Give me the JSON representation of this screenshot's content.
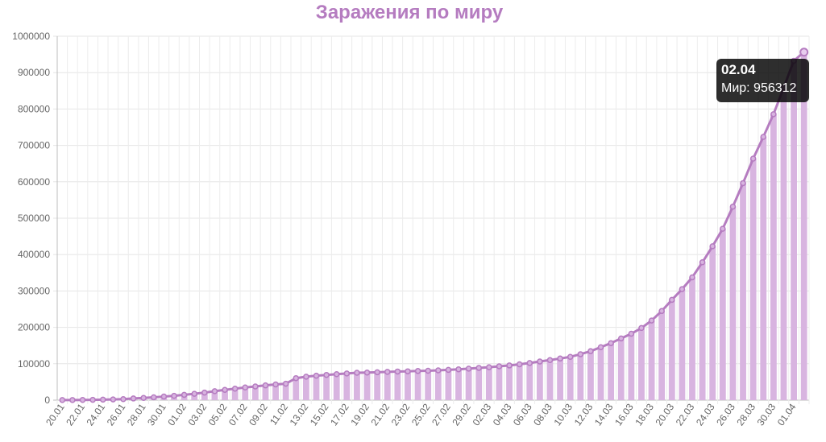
{
  "chart_data": {
    "type": "bar",
    "title": "Заражения по миру",
    "ylim": [
      0,
      1000000
    ],
    "y_ticks": [
      "0",
      "100000",
      "200000",
      "300000",
      "400000",
      "500000",
      "600000",
      "700000",
      "800000",
      "900000",
      "1000000"
    ],
    "grid": true,
    "categories": [
      "20.01",
      "21.01",
      "22.01",
      "23.01",
      "24.01",
      "25.01",
      "26.01",
      "27.01",
      "28.01",
      "29.01",
      "30.01",
      "31.01",
      "01.02",
      "02.02",
      "03.02",
      "04.02",
      "05.02",
      "06.02",
      "07.02",
      "08.02",
      "09.02",
      "10.02",
      "11.02",
      "12.02",
      "13.02",
      "14.02",
      "15.02",
      "16.02",
      "17.02",
      "18.02",
      "19.02",
      "20.02",
      "21.02",
      "22.02",
      "23.02",
      "24.02",
      "25.02",
      "26.02",
      "27.02",
      "28.02",
      "29.02",
      "01.03",
      "02.03",
      "03.03",
      "04.03",
      "05.03",
      "06.03",
      "07.03",
      "08.03",
      "09.03",
      "10.03",
      "11.03",
      "12.03",
      "13.03",
      "14.03",
      "15.03",
      "16.03",
      "17.03",
      "18.03",
      "19.03",
      "20.03",
      "21.03",
      "22.03",
      "23.03",
      "24.03",
      "25.03",
      "26.03",
      "27.03",
      "28.03",
      "29.03",
      "30.03",
      "31.03",
      "01.04",
      "02.04"
    ],
    "x_tick_labels": [
      "20.01",
      "22.01",
      "24.01",
      "26.01",
      "28.01",
      "30.01",
      "01.02",
      "03.02",
      "05.02",
      "07.02",
      "09.02",
      "11.02",
      "13.02",
      "15.02",
      "17.02",
      "19.02",
      "21.02",
      "23.02",
      "25.02",
      "27.02",
      "29.02",
      "02.03",
      "04.03",
      "06.03",
      "08.03",
      "10.03",
      "12.03",
      "14.03",
      "16.03",
      "18.03",
      "20.03",
      "22.03",
      "24.03",
      "26.03",
      "28.03",
      "30.03",
      "01.04"
    ],
    "series": [
      {
        "name": "Мир",
        "bar_color": "#d8b4e0",
        "line_color": "#b57cc0",
        "values": [
          282,
          314,
          581,
          846,
          1320,
          2014,
          2798,
          4593,
          6065,
          7818,
          9826,
          11953,
          14557,
          17391,
          20630,
          24554,
          28276,
          31481,
          34886,
          37558,
          40554,
          43103,
          45171,
          60374,
          64450,
          67100,
          69264,
          71332,
          73327,
          75184,
          75700,
          76677,
          77673,
          78651,
          79205,
          80088,
          80814,
          81915,
          83119,
          84605,
          86604,
          88585,
          90443,
          93016,
          95314,
          98425,
          102050,
          106099,
          109991,
          114381,
          118948,
          126214,
          134576,
          145483,
          156653,
          169593,
          182490,
          198238,
          218822,
          244933,
          275597,
          305036,
          337459,
          378830,
          422829,
          471035,
          531865,
          596366,
          663740,
          723390,
          785807,
          858371,
          932605,
          956312
        ]
      }
    ],
    "tooltip": {
      "title": "02.04",
      "label": "Мир: 956312"
    }
  }
}
